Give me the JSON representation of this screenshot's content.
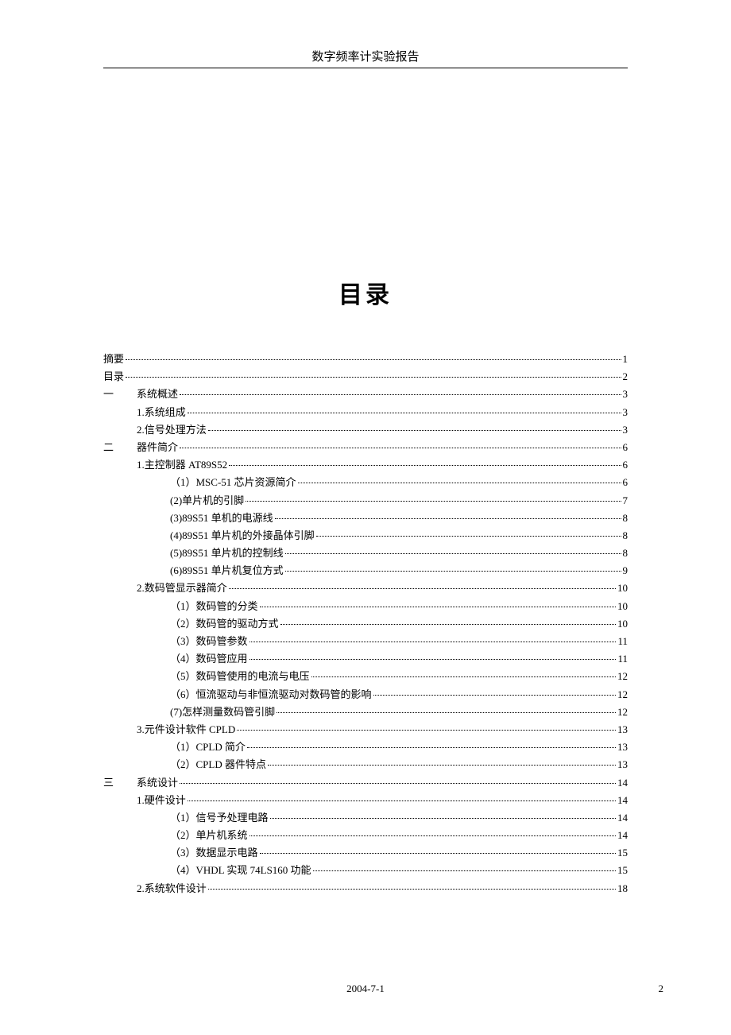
{
  "header": {
    "title": "数字频率计实验报告"
  },
  "main_title": "目录",
  "toc": {
    "entries": [
      {
        "level": 0,
        "label": "摘要",
        "page": "1"
      },
      {
        "level": 0,
        "label": "目录",
        "page": "2"
      },
      {
        "level": 1,
        "num": "一",
        "label": "系统概述",
        "page": "3"
      },
      {
        "level": 2,
        "label": "1.系统组成",
        "page": "3"
      },
      {
        "level": 2,
        "label": "2.信号处理方法",
        "page": "3"
      },
      {
        "level": 1,
        "num": "二",
        "label": "器件简介",
        "page": "6"
      },
      {
        "level": 2,
        "label": "1.主控制器 AT89S52",
        "page": "6"
      },
      {
        "level": 3,
        "label": "（1）MSC-51 芯片资源简介",
        "page": "6"
      },
      {
        "level": 3,
        "label": "(2)单片机的引脚",
        "page": "7"
      },
      {
        "level": 3,
        "label": "(3)89S51 单机的电源线",
        "page": "8"
      },
      {
        "level": 3,
        "label": "(4)89S51 单片机的外接晶体引脚",
        "page": "8"
      },
      {
        "level": 3,
        "label": "(5)89S51 单片机的控制线",
        "page": "8"
      },
      {
        "level": 3,
        "label": "(6)89S51 单片机复位方式",
        "page": "9"
      },
      {
        "level": 2,
        "label": "2.数码管显示器简介",
        "page": "10"
      },
      {
        "level": 3,
        "label": "（1）数码管的分类",
        "page": "10"
      },
      {
        "level": 3,
        "label": "（2）数码管的驱动方式",
        "page": "10"
      },
      {
        "level": 3,
        "label": "（3）数码管参数",
        "page": "11"
      },
      {
        "level": 3,
        "label": "（4）数码管应用",
        "page": "11"
      },
      {
        "level": 3,
        "label": "（5）数码管使用的电流与电压",
        "page": "12"
      },
      {
        "level": 3,
        "label": "（6）恒流驱动与非恒流驱动对数码管的影响",
        "page": "12"
      },
      {
        "level": 3,
        "label": "(7)怎样测量数码管引脚",
        "page": "12"
      },
      {
        "level": 2,
        "label": "3.元件设计软件 CPLD",
        "page": "13"
      },
      {
        "level": 3,
        "label": "（1）CPLD 简介",
        "page": "13"
      },
      {
        "level": 3,
        "label": "（2）CPLD 器件特点 ",
        "page": "13"
      },
      {
        "level": 1,
        "num": "三",
        "label": "系统设计",
        "page": "14"
      },
      {
        "level": 2,
        "label": "1.硬件设计",
        "page": "14"
      },
      {
        "level": 3,
        "label": "（1）信号予处理电路",
        "page": "14"
      },
      {
        "level": 3,
        "label": "（2）单片机系统",
        "page": "14"
      },
      {
        "level": 3,
        "label": "（3）数据显示电路",
        "page": "15"
      },
      {
        "level": 3,
        "label": "（4）VHDL 实现 74LS160 功能",
        "page": "15"
      },
      {
        "level": 2,
        "label": "2.系统软件设计",
        "page": "18"
      }
    ]
  },
  "footer": {
    "date": "2004-7-1",
    "page_number": "2"
  }
}
